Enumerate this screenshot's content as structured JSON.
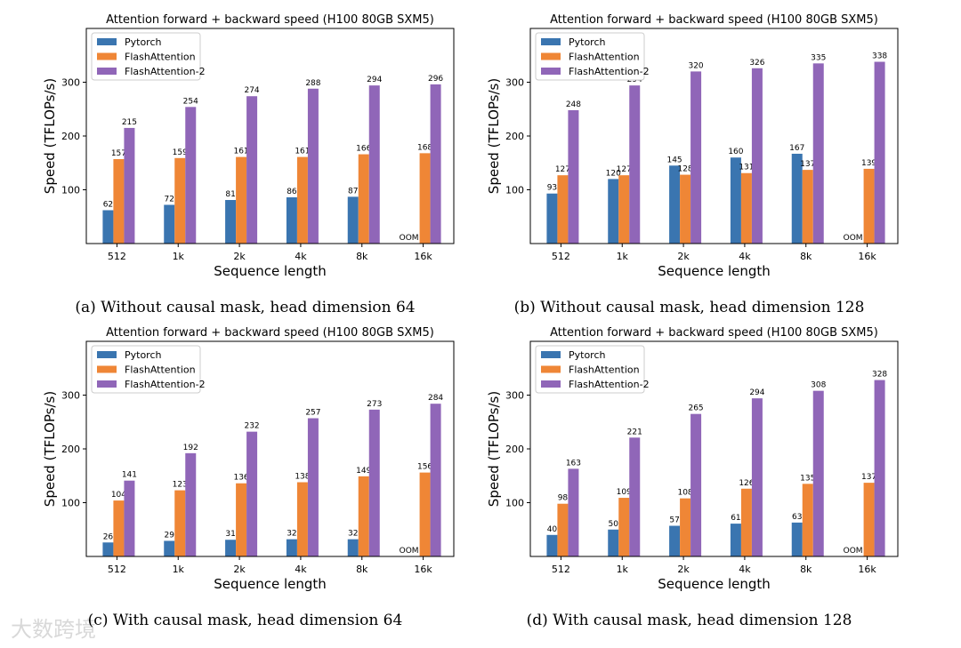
{
  "watermark": "大数跨境",
  "colors": {
    "Pytorch": "#3a75b0",
    "FlashAttention": "#ef8636",
    "FlashAttention-2": "#9066b8"
  },
  "chart_data": [
    {
      "type": "bar",
      "title": "Attention forward + backward speed (H100 80GB SXM5)",
      "caption": "(a) Without causal mask, head dimension 64",
      "xlabel": "Sequence length",
      "ylabel": "Speed (TFLOPs/s)",
      "ylim": [
        0,
        400
      ],
      "yticks": [
        100,
        200,
        300
      ],
      "categories": [
        "512",
        "1k",
        "2k",
        "4k",
        "8k",
        "16k"
      ],
      "legend": "top-left",
      "oom_label": "OOM",
      "series": [
        {
          "name": "Pytorch",
          "values": [
            62,
            72,
            81,
            86,
            87,
            null
          ]
        },
        {
          "name": "FlashAttention",
          "values": [
            157,
            159,
            161,
            161,
            166,
            168
          ]
        },
        {
          "name": "FlashAttention-2",
          "values": [
            215,
            254,
            274,
            288,
            294,
            296
          ]
        }
      ]
    },
    {
      "type": "bar",
      "title": "Attention forward + backward speed (H100 80GB SXM5)",
      "caption": "(b) Without causal mask, head dimension 128",
      "xlabel": "Sequence length",
      "ylabel": "Speed (TFLOPs/s)",
      "ylim": [
        0,
        400
      ],
      "yticks": [
        100,
        200,
        300
      ],
      "categories": [
        "512",
        "1k",
        "2k",
        "4k",
        "8k",
        "16k"
      ],
      "legend": "top-left",
      "oom_label": "OOM",
      "series": [
        {
          "name": "Pytorch",
          "values": [
            93,
            120,
            145,
            160,
            167,
            null
          ]
        },
        {
          "name": "FlashAttention",
          "values": [
            127,
            127,
            128,
            131,
            137,
            139
          ]
        },
        {
          "name": "FlashAttention-2",
          "values": [
            248,
            294,
            320,
            326,
            335,
            338
          ]
        }
      ]
    },
    {
      "type": "bar",
      "title": "Attention forward + backward speed (H100 80GB SXM5)",
      "caption": "(c) With causal mask, head dimension 64",
      "xlabel": "Sequence length",
      "ylabel": "Speed (TFLOPs/s)",
      "ylim": [
        0,
        400
      ],
      "yticks": [
        100,
        200,
        300
      ],
      "categories": [
        "512",
        "1k",
        "2k",
        "4k",
        "8k",
        "16k"
      ],
      "legend": "top-left",
      "oom_label": "OOM",
      "series": [
        {
          "name": "Pytorch",
          "values": [
            26,
            29,
            31,
            32,
            32,
            null
          ]
        },
        {
          "name": "FlashAttention",
          "values": [
            104,
            123,
            136,
            138,
            149,
            156
          ]
        },
        {
          "name": "FlashAttention-2",
          "values": [
            141,
            192,
            232,
            257,
            273,
            284
          ]
        }
      ]
    },
    {
      "type": "bar",
      "title": "Attention forward + backward speed (H100 80GB SXM5)",
      "caption": "(d) With causal mask, head dimension 128",
      "xlabel": "Sequence length",
      "ylabel": "Speed (TFLOPs/s)",
      "ylim": [
        0,
        400
      ],
      "yticks": [
        100,
        200,
        300
      ],
      "categories": [
        "512",
        "1k",
        "2k",
        "4k",
        "8k",
        "16k"
      ],
      "legend": "top-left",
      "oom_label": "OOM",
      "series": [
        {
          "name": "Pytorch",
          "values": [
            40,
            50,
            57,
            61,
            63,
            null
          ]
        },
        {
          "name": "FlashAttention",
          "values": [
            98,
            109,
            108,
            126,
            135,
            137
          ]
        },
        {
          "name": "FlashAttention-2",
          "values": [
            163,
            221,
            265,
            294,
            308,
            328
          ]
        }
      ]
    }
  ]
}
